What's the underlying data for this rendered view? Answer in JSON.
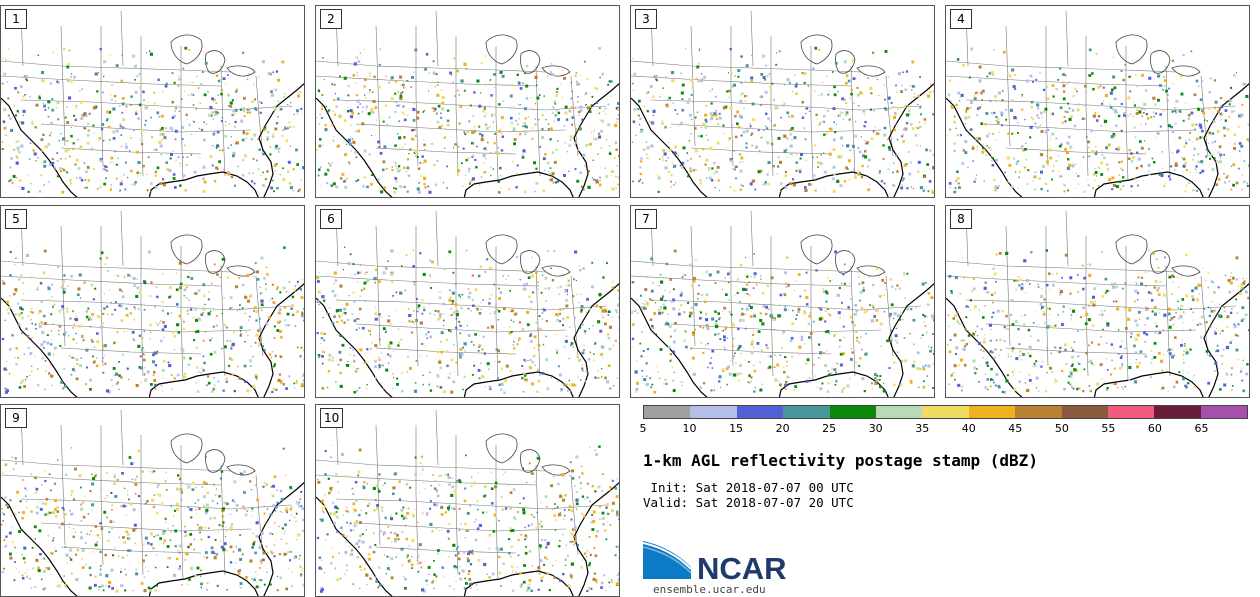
{
  "panels": [
    "1",
    "2",
    "3",
    "4",
    "5",
    "6",
    "7",
    "8",
    "9",
    "10"
  ],
  "colorbar": {
    "colors": [
      "#a0a0a0",
      "#b4bfe9",
      "#5360d6",
      "#4a969d",
      "#0b8a0a",
      "#b8dab8",
      "#f0dc65",
      "#f0b11f",
      "#b98133",
      "#8a5a3f",
      "#f05c7e",
      "#6a1d3b",
      "#a64fab"
    ],
    "ticks": [
      "5",
      "10",
      "15",
      "20",
      "25",
      "30",
      "35",
      "40",
      "45",
      "50",
      "55",
      "60",
      "65"
    ]
  },
  "title": "1-km AGL reflectivity postage stamp (dBZ)",
  "init": " Init: Sat 2018-07-07 00 UTC",
  "valid": "Valid: Sat 2018-07-07 20 UTC",
  "logo": {
    "text": "NCAR",
    "url": "ensemble.ucar.edu",
    "colors": {
      "blue": "#0a7bc4",
      "navy": "#1f3b6b"
    }
  }
}
